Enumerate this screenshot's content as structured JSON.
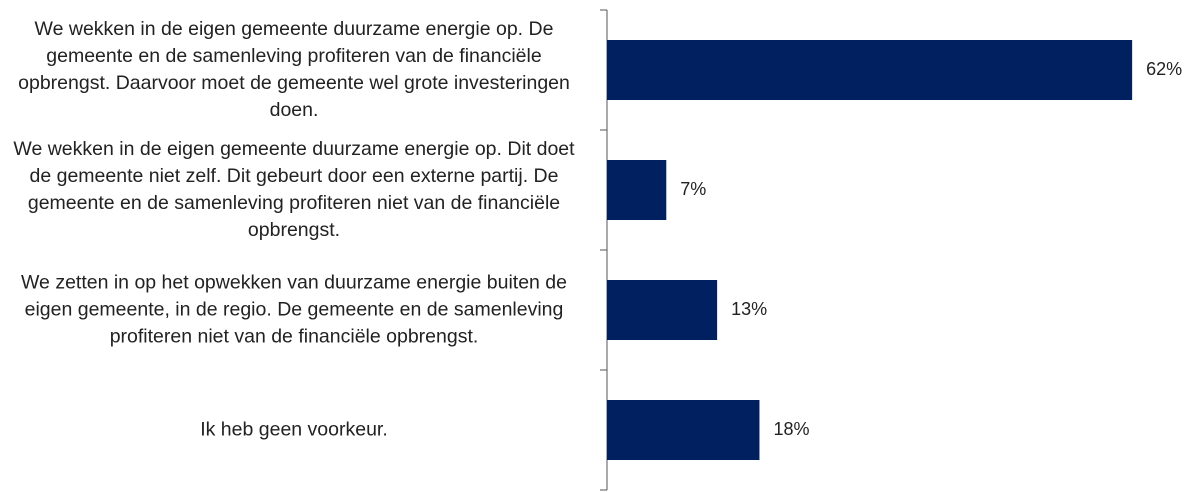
{
  "chart_data": {
    "type": "bar",
    "orientation": "horizontal",
    "categories": [
      "We wekken in de eigen gemeente duurzame energie op. De gemeente en de samenleving profiteren van de financiële opbrengst. Daarvoor moet de gemeente wel grote investeringen doen.",
      "We wekken in de eigen gemeente duurzame energie op. Dit doet de gemeente niet zelf. Dit gebeurt door een externe partij. De gemeente en de samenleving profiteren niet van de financiële opbrengst.",
      "We zetten in op het opwekken van duurzame energie buiten de eigen gemeente, in de regio. De gemeente en de samenleving profiteren niet van de financiële opbrengst.",
      "Ik heb geen voorkeur."
    ],
    "values": [
      62,
      7,
      13,
      18
    ],
    "value_labels": [
      "62%",
      "7%",
      "13%",
      "18%"
    ],
    "color": "#002060"
  }
}
